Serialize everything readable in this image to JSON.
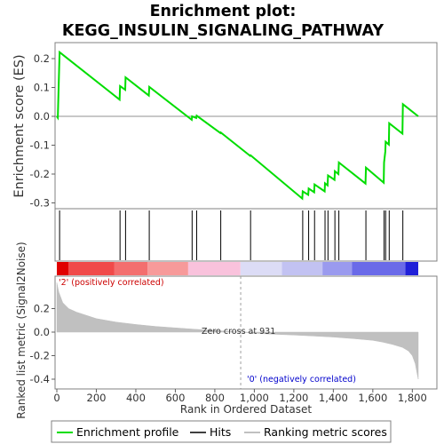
{
  "title_line1": "Enrichment plot:",
  "title_line2": "KEGG_INSULIN_SIGNALING_PATHWAY",
  "es_axis_label": "Enrichment score (ES)",
  "metric_axis_label": "Ranked list metric (Signal2Noise)",
  "x_axis_label": "Rank in Ordered Dataset",
  "positive_label": "'2' (positively correlated)",
  "negative_label": "'0' (negatively correlated)",
  "zero_cross_label": "Zero cross at 931",
  "legend": {
    "profile": "Enrichment profile",
    "hits": "Hits",
    "metric": "Ranking metric scores"
  },
  "colors": {
    "profile": "#00dd00",
    "hits": "#000000",
    "metric_fill": "#c0c0c0",
    "positive_text": "#cc0000",
    "negative_text": "#0000cc"
  },
  "chart_data": {
    "type": "line",
    "x_range": [
      0,
      1830
    ],
    "es_ylim": [
      -0.31,
      0.25
    ],
    "es_yticks": [
      -0.3,
      -0.2,
      -0.1,
      0.0,
      0.1,
      0.2
    ],
    "metric_ylim": [
      -0.45,
      0.42
    ],
    "metric_yticks": [
      -0.4,
      -0.2,
      0.0,
      0.2
    ],
    "xticks": [
      0,
      200,
      400,
      600,
      800,
      1000,
      1200,
      1400,
      1600,
      1800
    ],
    "hit_ranks": [
      14,
      320,
      348,
      468,
      685,
      708,
      830,
      981,
      1245,
      1275,
      1305,
      1358,
      1373,
      1408,
      1428,
      1565,
      1657,
      1665,
      1683,
      1752
    ],
    "es_profile": [
      [
        0,
        0.0
      ],
      [
        5,
        -0.005
      ],
      [
        14,
        0.222
      ],
      [
        318,
        0.058
      ],
      [
        320,
        0.105
      ],
      [
        346,
        0.092
      ],
      [
        348,
        0.135
      ],
      [
        466,
        0.072
      ],
      [
        468,
        0.102
      ],
      [
        683,
        -0.012
      ],
      [
        685,
        0.0
      ],
      [
        706,
        -0.006
      ],
      [
        708,
        0.002
      ],
      [
        828,
        -0.058
      ],
      [
        830,
        -0.056
      ],
      [
        979,
        -0.137
      ],
      [
        981,
        -0.135
      ],
      [
        1243,
        -0.285
      ],
      [
        1245,
        -0.26
      ],
      [
        1273,
        -0.272
      ],
      [
        1275,
        -0.25
      ],
      [
        1303,
        -0.263
      ],
      [
        1305,
        -0.236
      ],
      [
        1356,
        -0.26
      ],
      [
        1358,
        -0.232
      ],
      [
        1371,
        -0.239
      ],
      [
        1373,
        -0.205
      ],
      [
        1406,
        -0.22
      ],
      [
        1408,
        -0.19
      ],
      [
        1426,
        -0.2
      ],
      [
        1428,
        -0.16
      ],
      [
        1563,
        -0.233
      ],
      [
        1565,
        -0.178
      ],
      [
        1655,
        -0.23
      ],
      [
        1657,
        -0.16
      ],
      [
        1663,
        -0.122
      ],
      [
        1665,
        -0.088
      ],
      [
        1681,
        -0.098
      ],
      [
        1683,
        -0.024
      ],
      [
        1750,
        -0.06
      ],
      [
        1752,
        0.042
      ],
      [
        1830,
        0.0
      ]
    ],
    "metric_profile": [
      [
        0,
        0.42
      ],
      [
        10,
        0.34
      ],
      [
        30,
        0.25
      ],
      [
        60,
        0.2
      ],
      [
        100,
        0.17
      ],
      [
        200,
        0.115
      ],
      [
        300,
        0.085
      ],
      [
        400,
        0.065
      ],
      [
        500,
        0.048
      ],
      [
        600,
        0.036
      ],
      [
        700,
        0.024
      ],
      [
        800,
        0.014
      ],
      [
        931,
        0.0
      ],
      [
        1000,
        -0.01
      ],
      [
        1100,
        -0.018
      ],
      [
        1200,
        -0.025
      ],
      [
        1300,
        -0.033
      ],
      [
        1400,
        -0.042
      ],
      [
        1500,
        -0.055
      ],
      [
        1600,
        -0.07
      ],
      [
        1650,
        -0.085
      ],
      [
        1700,
        -0.105
      ],
      [
        1750,
        -0.13
      ],
      [
        1780,
        -0.16
      ],
      [
        1800,
        -0.2
      ],
      [
        1815,
        -0.27
      ],
      [
        1825,
        -0.36
      ],
      [
        1830,
        -0.4
      ]
    ],
    "zero_cross": 931,
    "color_band": [
      {
        "from": 0,
        "to": 60,
        "color": "#e00000"
      },
      {
        "from": 60,
        "to": 290,
        "color": "#f04a4a"
      },
      {
        "from": 290,
        "to": 460,
        "color": "#f36f6f"
      },
      {
        "from": 460,
        "to": 665,
        "color": "#f79a9a"
      },
      {
        "from": 665,
        "to": 930,
        "color": "#f9c2dc"
      },
      {
        "from": 930,
        "to": 1140,
        "color": "#dcdcf6"
      },
      {
        "from": 1140,
        "to": 1345,
        "color": "#c2c2f2"
      },
      {
        "from": 1345,
        "to": 1495,
        "color": "#9a9aee"
      },
      {
        "from": 1495,
        "to": 1765,
        "color": "#6a6ae8"
      },
      {
        "from": 1765,
        "to": 1830,
        "color": "#2020d8"
      }
    ]
  }
}
